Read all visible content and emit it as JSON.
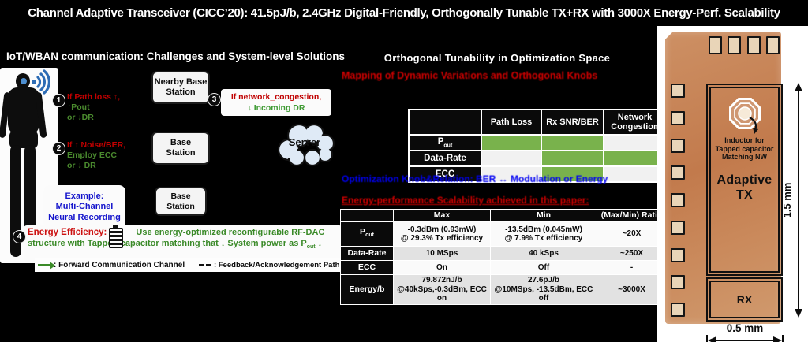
{
  "title": "Channel Adaptive Transceiver (CICC’20): 41.5pJ/b, 2.4GHz Digital-Friendly, Orthogonally Tunable TX+RX with 3000X Energy-Perf. Scalability",
  "left": {
    "header": "IoT/WBAN  communication:   Challenges and System-level Solutions",
    "item1": {
      "badge": "1",
      "red": "If Path loss ↑,",
      "greens": [
        "↑Pout",
        "or ↓DR"
      ]
    },
    "item2": {
      "badge": "2",
      "red": "If ↑ Noise/BER,",
      "greens": [
        "Employ ECC",
        "or ↓ DR"
      ]
    },
    "item3": {
      "badge": "3",
      "red": "If network_congestion,",
      "green": "↓ Incoming DR"
    },
    "item4": {
      "badge": "4",
      "red": "Energy Efficiency:",
      "green_line1": "Use  energy-optimized reconfigurable RF-DAC",
      "green_line2_pre": "structure  with Tapped-capacitor matching that  ↓  System power as P",
      "green_line2_sub": "out",
      "green_line2_post": " ↓"
    },
    "boxes": [
      {
        "l1": "Nearby Base",
        "l2": "Station"
      },
      {
        "l1": "Base",
        "l2": "Station"
      },
      {
        "l1": "Base",
        "l2": "Station"
      }
    ],
    "server_label": "Server",
    "example_lines": [
      "Example:",
      "Multi-Channel",
      "Neural Recording"
    ],
    "legend": [
      {
        "text": ": Forward Communication Channel"
      },
      {
        "text": ": Feedback/Acknowledgement Path"
      }
    ]
  },
  "middle": {
    "title": "Orthogonal Tunability in Optimization Space",
    "subtitle_mapping": "Mapping of Dynamic Variations and Orthogonal Knobs",
    "subtitle_knob": "Optimization Knob&Relation: BER ↔ Modulation or Energy",
    "subtitle_scalability": "Energy-performance Scalability achieved in this paper:",
    "table1": {
      "headers": [
        "Path Loss",
        "Rx SNR/BER",
        "Network Congestion"
      ],
      "rows": [
        {
          "label": "P",
          "label_sub": "out",
          "cells": [
            true,
            true,
            false
          ]
        },
        {
          "label": "Data-Rate",
          "label_sub": "",
          "cells": [
            false,
            true,
            true
          ]
        },
        {
          "label": "ECC",
          "label_sub": "",
          "cells": [
            false,
            true,
            false
          ]
        }
      ]
    },
    "table2": {
      "headers": [
        "",
        "Max",
        "Min",
        "(Max/Min) Ratio"
      ],
      "rows": [
        {
          "label": "P",
          "label_sub": "out",
          "max": [
            "-0.3dBm (0.93mW)",
            "@ 29.3% Tx efficiency"
          ],
          "min": [
            "-13.5dBm (0.045mW)",
            "@ 7.9% Tx efficiency"
          ],
          "ratio": "~20X"
        },
        {
          "label": "Data-Rate",
          "label_sub": "",
          "max": [
            "10 MSps"
          ],
          "min": [
            "40 kSps"
          ],
          "ratio": "~250X"
        },
        {
          "label": "ECC",
          "label_sub": "",
          "max": [
            "On"
          ],
          "min": [
            "Off"
          ],
          "ratio": "-"
        },
        {
          "label": "Energy/b",
          "label_sub": "",
          "max": [
            "79.872nJ/b",
            "@40kSps,-0.3dBm, ECC on"
          ],
          "min": [
            "27.6pJ/b",
            "@10MSps, -13.5dBm, ECC off"
          ],
          "ratio": "~3000X"
        }
      ]
    }
  },
  "chip": {
    "inductor_note_lines": [
      "Inductor for",
      "Tapped capacitor",
      "Matching NW"
    ],
    "tx_lines": [
      "Adaptive",
      "TX"
    ],
    "rx_label": "RX",
    "height_label": "1.5 mm",
    "width_label": "0.5 mm"
  },
  "colors": {
    "table_green": "#79b24c",
    "red_text": "#c00000",
    "green_text": "#3a8a28",
    "blue_text": "#1515cc",
    "copper": "#c8875a",
    "cloud": "#dfeaf6"
  }
}
